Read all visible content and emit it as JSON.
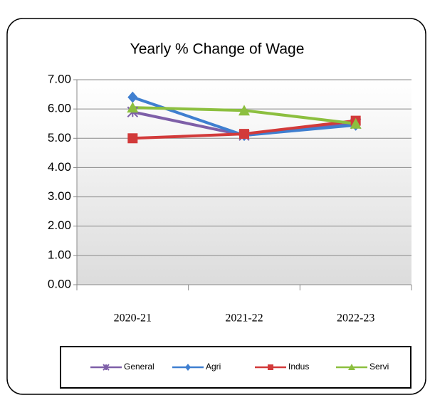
{
  "chart_data": {
    "type": "line",
    "title": "Yearly % Change of Wage",
    "categories": [
      "2020-21",
      "2021-22",
      "2022-23"
    ],
    "series": [
      {
        "name": "General",
        "color": "#7e5fa8",
        "values": [
          5.9,
          5.1,
          5.5
        ]
      },
      {
        "name": "Agri",
        "color": "#3f7fd0",
        "values": [
          6.4,
          5.1,
          5.45
        ]
      },
      {
        "name": "Indus",
        "color": "#d23a3a",
        "values": [
          5.0,
          5.15,
          5.6
        ]
      },
      {
        "name": "Servi",
        "color": "#8cbf3f",
        "values": [
          6.05,
          5.95,
          5.5
        ]
      }
    ],
    "ylim": [
      0,
      7
    ],
    "yticks": [
      {
        "value": 0,
        "label": "0.00"
      },
      {
        "value": 1,
        "label": "1.00"
      },
      {
        "value": 2,
        "label": "2.00"
      },
      {
        "value": 3,
        "label": "3.00"
      },
      {
        "value": 4,
        "label": "4.00"
      },
      {
        "value": 5,
        "label": "5.00"
      },
      {
        "value": 6,
        "label": "6.00"
      },
      {
        "value": 7,
        "label": "7.00"
      }
    ],
    "grid": true,
    "legend": "bottom"
  }
}
